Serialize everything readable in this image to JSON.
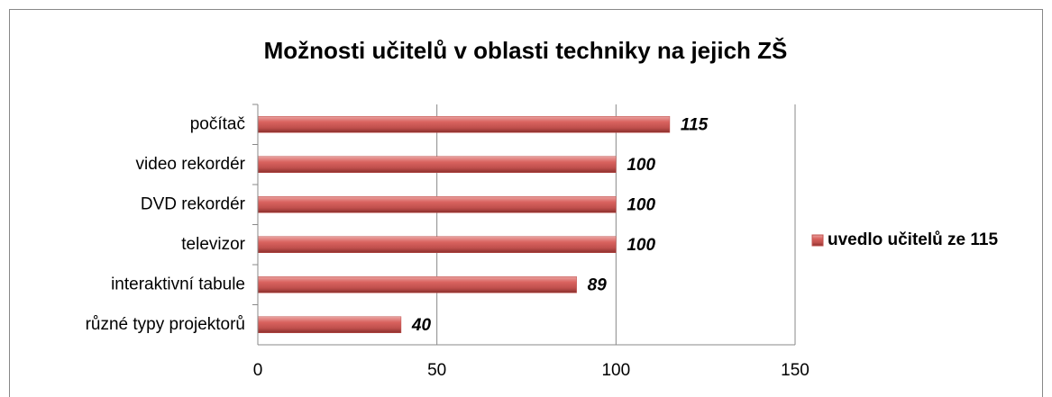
{
  "chart_data": {
    "type": "bar",
    "orientation": "horizontal",
    "title": "Možnosti učitelů v oblasti techniky na jejich ZŠ",
    "categories": [
      "počítač",
      "video rekordér",
      "DVD rekordér",
      "televizor",
      "interaktivní tabule",
      "různé typy projektorů"
    ],
    "series": [
      {
        "name": "uvedlo učitelů ze 115",
        "color": "#c0504d",
        "values": [
          115,
          100,
          100,
          100,
          89,
          40
        ]
      }
    ],
    "xlim": [
      0,
      150
    ],
    "xticks": [
      0,
      50,
      100,
      150
    ],
    "grid": true,
    "legend": "right"
  }
}
